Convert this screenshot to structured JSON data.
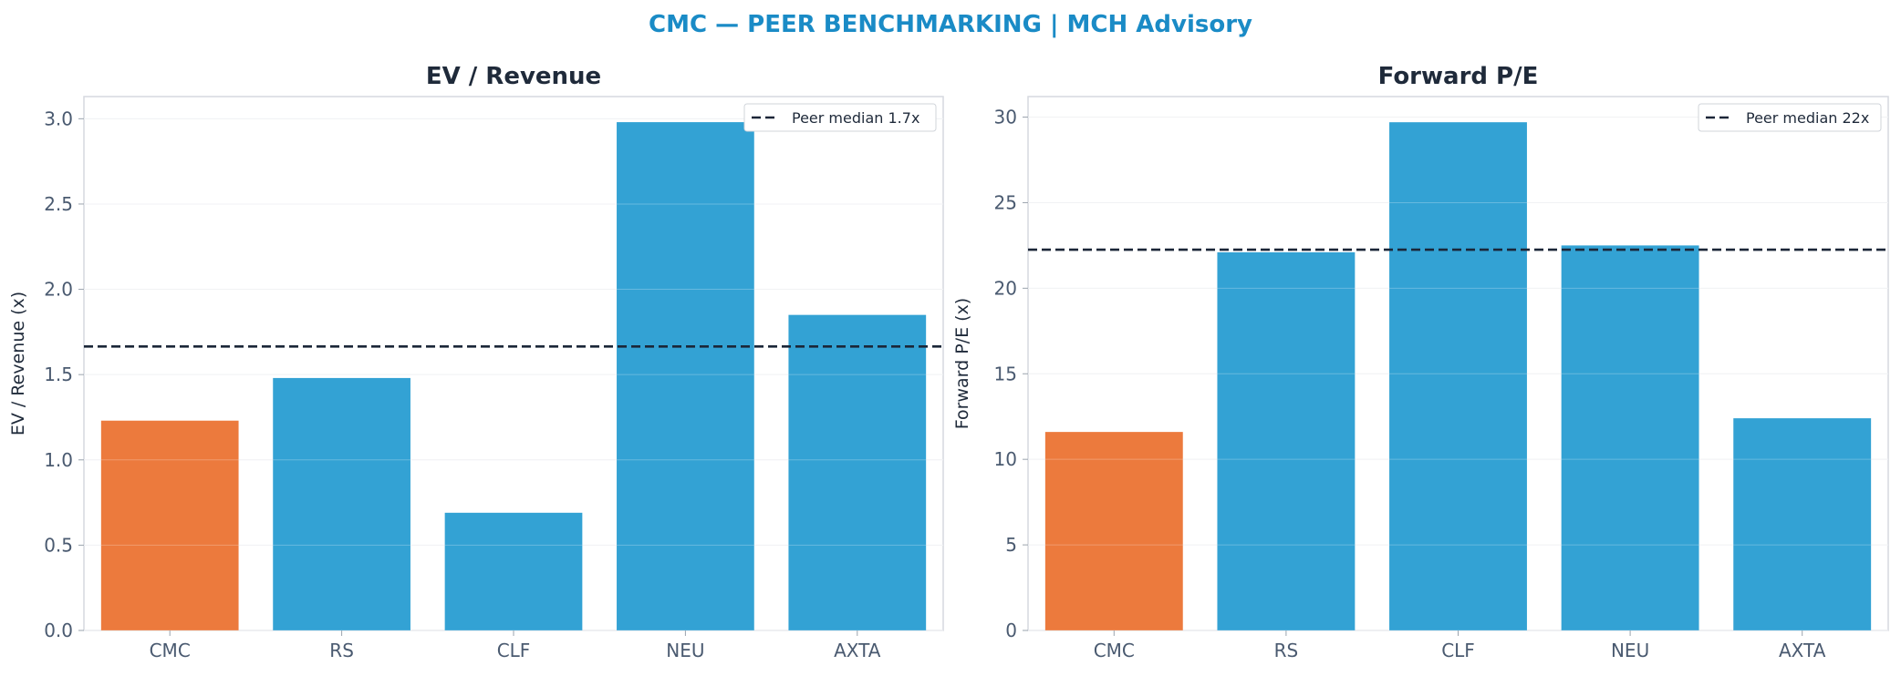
{
  "suptitle": "CMC — PEER BENCHMARKING | MCH Advisory",
  "colors": {
    "subject": "#ec7a3d",
    "peer": "#33a2d4",
    "median": "#1b2638",
    "title": "#1a8bc6"
  },
  "chart_data": [
    {
      "type": "bar",
      "title": "EV / Revenue",
      "ylabel": "EV / Revenue (x)",
      "categories": [
        "CMC",
        "RS",
        "CLF",
        "NEU",
        "AXTA"
      ],
      "values": [
        1.23,
        1.48,
        0.69,
        2.98,
        1.85
      ],
      "highlight": "CMC",
      "ylim": [
        0,
        3.13
      ],
      "yticks": [
        0,
        0.5,
        1.0,
        1.5,
        2.0,
        2.5,
        3.0
      ],
      "ytick_labels": [
        "0.0",
        "0.5",
        "1.0",
        "1.5",
        "2.0",
        "2.5",
        "3.0"
      ],
      "median": 1.665,
      "median_label": "Peer median 1.7x",
      "legend": "top-right",
      "grid": true
    },
    {
      "type": "bar",
      "title": "Forward P/E",
      "ylabel": "Forward P/E (x)",
      "categories": [
        "CMC",
        "RS",
        "CLF",
        "NEU",
        "AXTA"
      ],
      "values": [
        11.6,
        22.1,
        29.7,
        22.5,
        12.4
      ],
      "highlight": "CMC",
      "ylim": [
        0,
        31.2
      ],
      "yticks": [
        0,
        5,
        10,
        15,
        20,
        25,
        30
      ],
      "ytick_labels": [
        "0",
        "5",
        "10",
        "15",
        "20",
        "25",
        "30"
      ],
      "median": 22.25,
      "median_label": "Peer median 22x",
      "legend": "top-right",
      "grid": true
    }
  ]
}
